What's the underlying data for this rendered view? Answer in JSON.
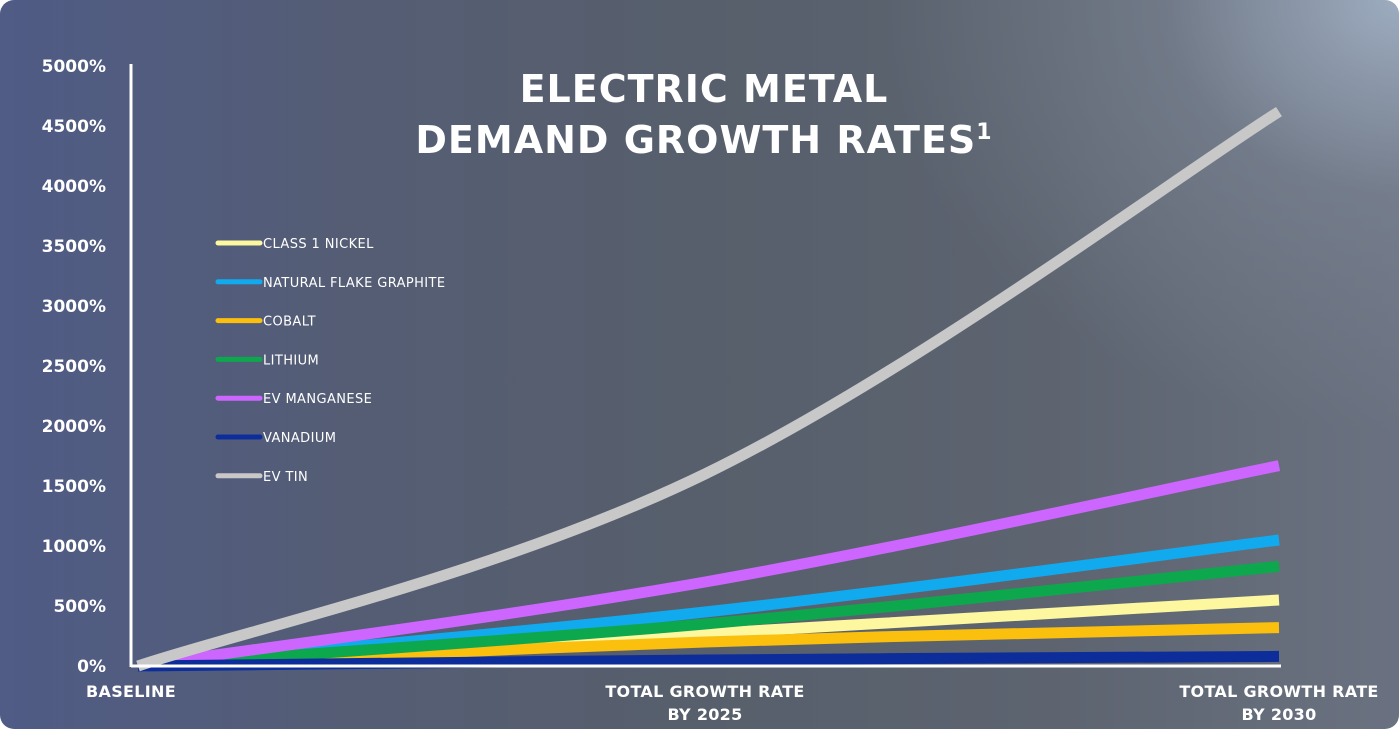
{
  "chart_data": {
    "type": "line",
    "title_lines": [
      "ELECTRIC METAL",
      "DEMAND GROWTH RATES"
    ],
    "title_superscript": "1",
    "categories": [
      [
        "BASELINE"
      ],
      [
        "TOTAL GROWTH RATE",
        "BY 2025"
      ],
      [
        "TOTAL GROWTH RATE",
        "BY 2030"
      ]
    ],
    "ylim": [
      0,
      5000
    ],
    "yticks": [
      0,
      500,
      1000,
      1500,
      2000,
      2500,
      3000,
      3500,
      4000,
      4500,
      5000
    ],
    "ytick_suffix": "%",
    "legend_position": "upper-left",
    "series": [
      {
        "name": "CLASS 1 NICKEL",
        "color": "#fdf7a0",
        "values": [
          0,
          270,
          550
        ]
      },
      {
        "name": "NATURAL FLAKE GRAPHITE",
        "color": "#12aaee",
        "values": [
          0,
          450,
          1050
        ]
      },
      {
        "name": "COBALT",
        "color": "#fbbf0e",
        "values": [
          0,
          200,
          320
        ]
      },
      {
        "name": "LITHIUM",
        "color": "#0da84d",
        "values": [
          0,
          350,
          830
        ]
      },
      {
        "name": "EV MANGANESE",
        "color": "#cc66ff",
        "values": [
          0,
          700,
          1670
        ]
      },
      {
        "name": "VANADIUM",
        "color": "#0d2e9a",
        "values": [
          0,
          50,
          80
        ]
      },
      {
        "name": "EV TIN",
        "color": "#c8c8c8",
        "values": [
          0,
          1600,
          4620
        ]
      }
    ]
  }
}
